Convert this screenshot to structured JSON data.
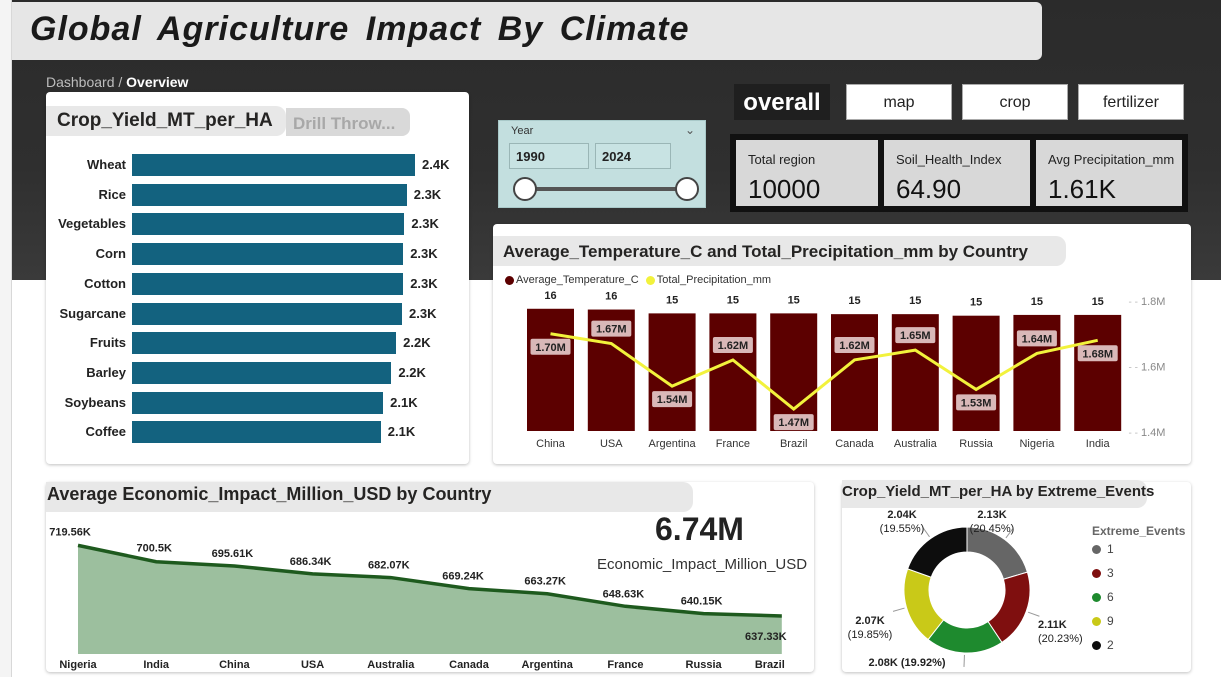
{
  "header": {
    "title": "Global  Agriculture  Impact  By  Climate",
    "breadcrumb_parent": "Dashboard",
    "breadcrumb_sep": " / ",
    "breadcrumb_current": "Overview"
  },
  "nav": {
    "overall": "overall",
    "map": "map",
    "crop": "crop",
    "fertilizer": "fertilizer"
  },
  "slicer": {
    "label": "Year",
    "from": "1990",
    "to": "2024",
    "chevron_icon": "chevron-down-icon"
  },
  "kpis": [
    {
      "label": "Total region",
      "value": "10000"
    },
    {
      "label": "Soil_Health_Index",
      "value": "64.90"
    },
    {
      "label": "Avg Precipitation_mm",
      "value": "1.61K"
    }
  ],
  "crop_yield": {
    "title": "Crop_Yield_MT_per_HA",
    "drill": "Drill Throw...",
    "chart_data": {
      "type": "bar",
      "orientation": "horizontal",
      "categories": [
        "Wheat",
        "Rice",
        "Vegetables",
        "Corn",
        "Cotton",
        "Sugarcane",
        "Fruits",
        "Barley",
        "Soybeans",
        "Coffee"
      ],
      "values": [
        2400,
        2330,
        2310,
        2300,
        2300,
        2290,
        2240,
        2200,
        2130,
        2110
      ],
      "labels": [
        "2.4K",
        "2.3K",
        "2.3K",
        "2.3K",
        "2.3K",
        "2.3K",
        "2.2K",
        "2.2K",
        "2.1K",
        "2.1K"
      ],
      "color": "#13627f"
    }
  },
  "temp_precip": {
    "title": "Average_Temperature_C and Total_Precipitation_mm by Country",
    "chart_data": {
      "type": "bar",
      "categories": [
        "China",
        "USA",
        "Argentina",
        "France",
        "Brazil",
        "Canada",
        "Australia",
        "Russia",
        "Nigeria",
        "India"
      ],
      "series": [
        {
          "name": "Average_Temperature_C",
          "kind": "bar",
          "color": "#5c0000",
          "values": [
            15.9,
            15.8,
            15.3,
            15.3,
            15.3,
            15.2,
            15.2,
            15.0,
            15.1,
            15.1
          ],
          "labels": [
            "16",
            "16",
            "15",
            "15",
            "15",
            "15",
            "15",
            "15",
            "15",
            "15"
          ]
        },
        {
          "name": "Total_Precipitation_mm",
          "kind": "line",
          "color": "#f2f23c",
          "axis": "right",
          "values": [
            1700000,
            1670000,
            1540000,
            1620000,
            1470000,
            1620000,
            1650000,
            1530000,
            1640000,
            1680000
          ],
          "labels": [
            "1.70M",
            "1.67M",
            "1.54M",
            "1.62M",
            "1.47M",
            "1.62M",
            "1.65M",
            "1.53M",
            "1.64M",
            "1.68M"
          ]
        }
      ],
      "y2_ticks": [
        "1.8M",
        "1.6M",
        "1.4M"
      ],
      "y2lim": [
        1400000,
        1800000
      ]
    }
  },
  "economic": {
    "title": "Average Economic_Impact_Million_USD by Country",
    "total_value": "6.74M",
    "total_label": "Economic_Impact_Million_USD",
    "chart_data": {
      "type": "area",
      "categories": [
        "Nigeria",
        "India",
        "China",
        "USA",
        "Australia",
        "Canada",
        "Argentina",
        "France",
        "Russia",
        "Brazil"
      ],
      "values": [
        719560,
        700500,
        695610,
        686340,
        682070,
        669240,
        663270,
        648630,
        640150,
        637330
      ],
      "labels": [
        "719.56K",
        "700.5K",
        "695.61K",
        "686.34K",
        "682.07K",
        "669.24K",
        "663.27K",
        "648.63K",
        "640.15K",
        "637.33K"
      ],
      "line_color": "#1e5a1e",
      "fill_color": "#9cbf9e"
    }
  },
  "extreme": {
    "title": "Crop_Yield_MT_per_HA by Extreme_Events",
    "legend_title": "Extreme_Events",
    "chart_data": {
      "type": "pie",
      "variant": "donut",
      "categories": [
        "1",
        "3",
        "6",
        "9",
        "2"
      ],
      "values": [
        2130,
        2110,
        2080,
        2070,
        2040
      ],
      "labels": [
        "2.13K\n(20.45%)",
        "2.11K\n(20.23%)",
        "2.08K (19.92%)",
        "2.07K\n(19.85%)",
        "2.04K\n(19.55%)"
      ],
      "colors": [
        "#666666",
        "#7f0f0f",
        "#1e8a2e",
        "#c9c918",
        "#0d0d0d"
      ]
    }
  }
}
